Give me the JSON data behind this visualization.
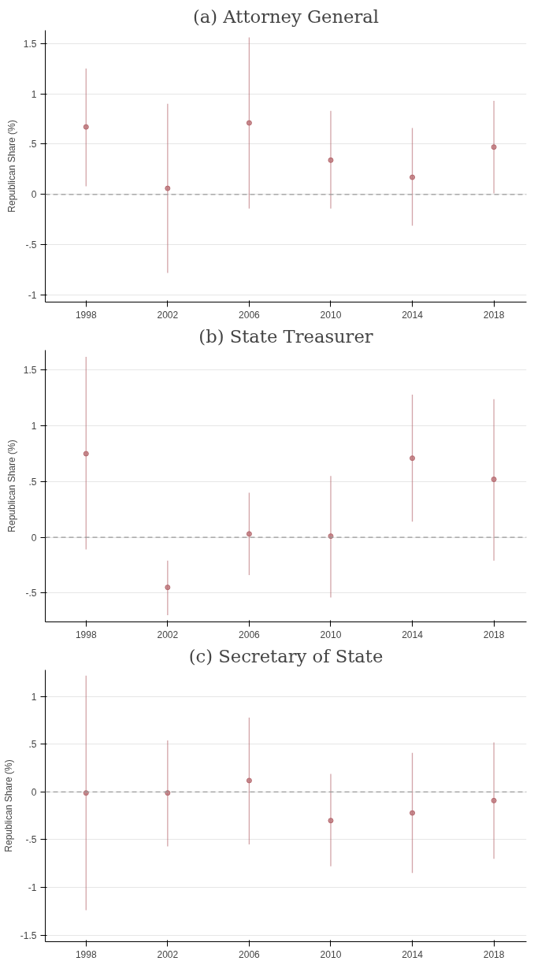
{
  "chart_data": [
    {
      "type": "scatter",
      "title": "(a) Attorney General",
      "ylabel": "Republican Share (%)",
      "x": [
        1998,
        2002,
        2006,
        2010,
        2014,
        2018
      ],
      "series": [
        {
          "color": "#b5686e",
          "values": [
            0.67,
            0.06,
            0.71,
            0.34,
            0.17,
            0.47
          ],
          "errors": [
            [
              0.08,
              1.25
            ],
            [
              -0.78,
              0.9
            ],
            [
              -0.14,
              1.56
            ],
            [
              -0.14,
              0.83
            ],
            [
              -0.31,
              0.66
            ],
            [
              0.01,
              0.93
            ]
          ]
        }
      ],
      "xlim": [
        1996,
        2019.6
      ],
      "xticks": [
        1998,
        2002,
        2006,
        2010,
        2014,
        2018
      ],
      "ylim": [
        -1.07,
        1.63
      ],
      "yticks": [
        {
          "value": -1,
          "label": "-1"
        },
        {
          "value": -0.5,
          "label": "-.5"
        },
        0,
        {
          "value": 0.5,
          "label": ".5"
        },
        1,
        1.5
      ],
      "ref_lines": [
        {
          "axis": "y",
          "value": 0,
          "color": "#999999",
          "line_style": "dashed"
        }
      ],
      "grid": "y",
      "marker": "circle"
    },
    {
      "type": "scatter",
      "title": "(b) State Treasurer",
      "ylabel": "Republican Share (%)",
      "x": [
        1998,
        2002,
        2006,
        2010,
        2014,
        2018
      ],
      "series": [
        {
          "color": "#b5686e",
          "values": [
            0.75,
            -0.45,
            0.03,
            0.01,
            0.71,
            0.52
          ],
          "errors": [
            [
              -0.11,
              1.62
            ],
            [
              -0.7,
              -0.21
            ],
            [
              -0.34,
              0.4
            ],
            [
              -0.54,
              0.55
            ],
            [
              0.14,
              1.28
            ],
            [
              -0.21,
              1.24
            ]
          ]
        }
      ],
      "xlim": [
        1996,
        2019.6
      ],
      "xticks": [
        1998,
        2002,
        2006,
        2010,
        2014,
        2018
      ],
      "ylim": [
        -0.76,
        1.68
      ],
      "yticks": [
        {
          "value": -0.5,
          "label": "-.5"
        },
        0,
        {
          "value": 0.5,
          "label": ".5"
        },
        1,
        1.5
      ],
      "ref_lines": [
        {
          "axis": "y",
          "value": 0,
          "color": "#999999",
          "line_style": "dashed"
        }
      ],
      "grid": "y",
      "marker": "circle"
    },
    {
      "type": "scatter",
      "title": "(c) Secretary of State",
      "ylabel": "Republican Share (%)",
      "x": [
        1998,
        2002,
        2006,
        2010,
        2014,
        2018
      ],
      "series": [
        {
          "color": "#b5686e",
          "values": [
            -0.01,
            -0.01,
            0.12,
            -0.3,
            -0.22,
            -0.09
          ],
          "errors": [
            [
              -1.24,
              1.22
            ],
            [
              -0.57,
              0.54
            ],
            [
              -0.55,
              0.78
            ],
            [
              -0.78,
              0.19
            ],
            [
              -0.85,
              0.41
            ],
            [
              -0.7,
              0.52
            ]
          ]
        }
      ],
      "xlim": [
        1996,
        2019.6
      ],
      "xticks": [
        1998,
        2002,
        2006,
        2010,
        2014,
        2018
      ],
      "ylim": [
        -1.57,
        1.28
      ],
      "yticks": [
        {
          "value": -1.5,
          "label": "-1.5"
        },
        {
          "value": -1,
          "label": "-1"
        },
        {
          "value": -0.5,
          "label": "-.5"
        },
        0,
        {
          "value": 0.5,
          "label": ".5"
        },
        1
      ],
      "ref_lines": [
        {
          "axis": "y",
          "value": 0,
          "color": "#999999",
          "line_style": "dashed"
        }
      ],
      "grid": "y",
      "marker": "circle"
    }
  ]
}
